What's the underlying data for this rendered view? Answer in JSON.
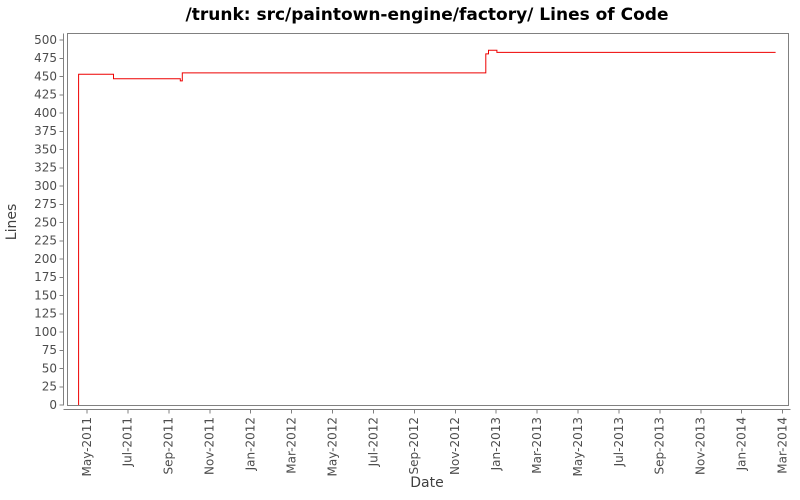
{
  "chart_data": {
    "type": "line",
    "title": "/trunk: src/paintown-engine/factory/ Lines of Code",
    "xlabel": "Date",
    "ylabel": "Lines",
    "ylim": [
      0,
      500
    ],
    "grid": false,
    "legend": "none",
    "line_color": "#ee0000",
    "axis_color": "#808080",
    "tick_label_color": "#4d4d4d",
    "y_ticks": [
      0,
      25,
      50,
      75,
      100,
      125,
      150,
      175,
      200,
      225,
      250,
      275,
      300,
      325,
      350,
      375,
      400,
      425,
      450,
      475,
      500
    ],
    "x_ticks": [
      "May-2011",
      "Jul-2011",
      "Sep-2011",
      "Nov-2011",
      "Jan-2012",
      "Mar-2012",
      "May-2012",
      "Jul-2012",
      "Sep-2012",
      "Nov-2012",
      "Jan-2013",
      "Mar-2013",
      "May-2013",
      "Jul-2013",
      "Sep-2013",
      "Nov-2013",
      "Jan-2014",
      "Mar-2014"
    ],
    "x_tick_interval_months": 2,
    "series": [
      {
        "name": "Lines of Code",
        "points": [
          [
            "2011-04-19",
            0
          ],
          [
            "2011-04-19",
            453
          ],
          [
            "2011-06-10",
            453
          ],
          [
            "2011-06-10",
            447
          ],
          [
            "2011-09-18",
            447
          ],
          [
            "2011-09-18",
            444
          ],
          [
            "2011-09-21",
            444
          ],
          [
            "2011-09-21",
            455
          ],
          [
            "2012-12-16",
            455
          ],
          [
            "2012-12-16",
            481
          ],
          [
            "2012-12-20",
            481
          ],
          [
            "2012-12-20",
            486
          ],
          [
            "2013-01-02",
            486
          ],
          [
            "2013-01-02",
            483
          ],
          [
            "2014-02-21",
            483
          ]
        ]
      }
    ]
  }
}
